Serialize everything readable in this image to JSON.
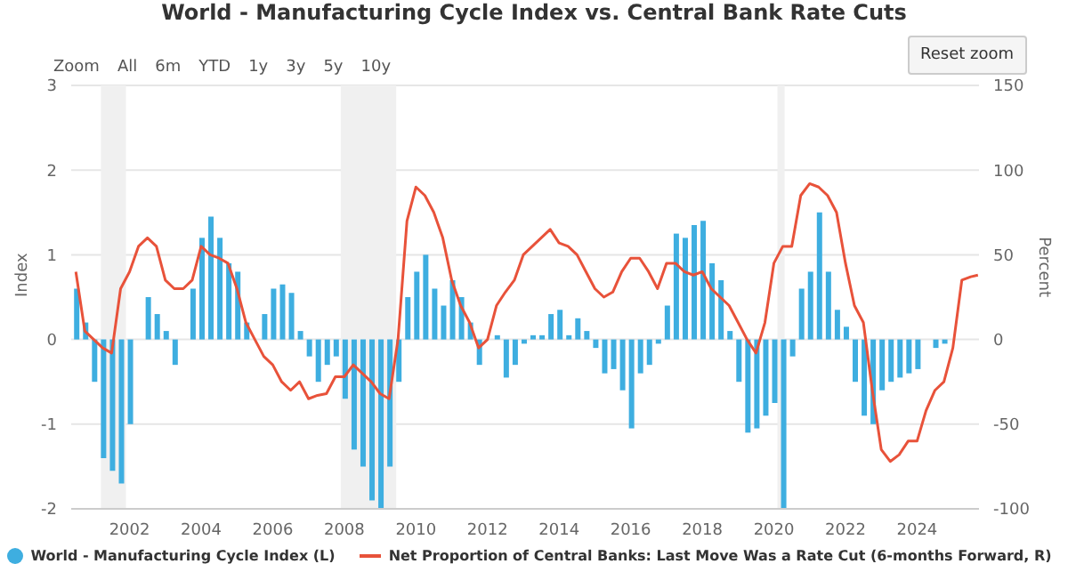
{
  "chart_data": {
    "type": "bar",
    "title": "World - Manufacturing Cycle Index vs. Central Bank Rate Cuts",
    "ylabel": "Index",
    "y2label": "Percent",
    "annotations": [
      "Zoom",
      "All",
      "6m",
      "YTD",
      "1y",
      "3y",
      "5y",
      "10y",
      "Reset zoom"
    ],
    "x": [
      2000.5,
      2000.75,
      2001,
      2001.25,
      2001.5,
      2001.75,
      2002,
      2002.25,
      2002.5,
      2002.75,
      2003,
      2003.25,
      2003.5,
      2003.75,
      2004,
      2004.25,
      2004.5,
      2004.75,
      2005,
      2005.25,
      2005.5,
      2005.75,
      2006,
      2006.25,
      2006.5,
      2006.75,
      2007,
      2007.25,
      2007.5,
      2007.75,
      2008,
      2008.25,
      2008.5,
      2008.75,
      2009,
      2009.25,
      2009.5,
      2009.75,
      2010,
      2010.25,
      2010.5,
      2010.75,
      2011,
      2011.25,
      2011.5,
      2011.75,
      2012,
      2012.25,
      2012.5,
      2012.75,
      2013,
      2013.25,
      2013.5,
      2013.75,
      2014,
      2014.25,
      2014.5,
      2014.75,
      2015,
      2015.25,
      2015.5,
      2015.75,
      2016,
      2016.25,
      2016.5,
      2016.75,
      2017,
      2017.25,
      2017.5,
      2017.75,
      2018,
      2018.25,
      2018.5,
      2018.75,
      2019,
      2019.25,
      2019.5,
      2019.75,
      2020,
      2020.25,
      2020.5,
      2020.75,
      2021,
      2021.25,
      2021.5,
      2021.75,
      2022,
      2022.25,
      2022.5,
      2022.75,
      2023,
      2023.25,
      2023.5,
      2023.75,
      2024,
      2024.25,
      2024.5,
      2024.75,
      2025,
      2025.25,
      2025.5,
      2025.7
    ],
    "series": [
      {
        "name": "World - Manufacturing Cycle Index (L)",
        "color": "#3eaee0",
        "values": [
          0.6,
          0.2,
          -0.5,
          -1.4,
          -1.55,
          -1.7,
          -1.0,
          0.0,
          0.5,
          0.3,
          0.1,
          -0.3,
          0.0,
          0.6,
          1.2,
          1.45,
          1.2,
          0.9,
          0.8,
          0.2,
          null,
          0.3,
          0.6,
          0.65,
          0.55,
          0.1,
          -0.2,
          -0.5,
          -0.3,
          -0.2,
          -0.7,
          -1.3,
          -1.5,
          -1.9,
          -2.0,
          -1.5,
          -0.5,
          0.5,
          0.8,
          1.0,
          0.6,
          0.4,
          0.7,
          0.5,
          0.2,
          -0.3,
          null,
          0.05,
          -0.45,
          -0.3,
          -0.05,
          0.05,
          0.05,
          0.3,
          0.35,
          0.05,
          0.25,
          0.1,
          -0.1,
          -0.4,
          -0.35,
          -0.6,
          -1.05,
          -0.4,
          -0.3,
          -0.05,
          0.4,
          1.25,
          1.2,
          1.35,
          1.4,
          0.9,
          0.7,
          0.1,
          -0.5,
          -1.1,
          -1.05,
          -0.9,
          -0.75,
          -2.0,
          -0.2,
          0.6,
          0.8,
          1.5,
          0.8,
          0.35,
          0.15,
          -0.5,
          -0.9,
          -1.0,
          -0.6,
          -0.5,
          -0.45,
          -0.4,
          -0.35,
          0.0,
          -0.1,
          -0.05,
          null,
          null,
          null,
          null
        ]
      },
      {
        "name": "Net Proportion of Central Banks: Last Move Was a Rate Cut (6-months Forward, R)",
        "type": "line",
        "axis": "y2",
        "color": "#e8523a",
        "values": [
          40,
          5,
          0,
          -5,
          -8,
          30,
          40,
          55,
          60,
          55,
          35,
          30,
          30,
          35,
          55,
          50,
          48,
          45,
          30,
          10,
          0,
          -10,
          -15,
          -25,
          -30,
          -25,
          -35,
          -33,
          -32,
          -22,
          -22,
          -15,
          -20,
          -25,
          -32,
          -35,
          0,
          70,
          90,
          85,
          75,
          60,
          35,
          20,
          10,
          -5,
          0,
          20,
          28,
          35,
          50,
          55,
          60,
          65,
          57,
          55,
          50,
          40,
          30,
          25,
          28,
          40,
          48,
          48,
          40,
          30,
          45,
          45,
          40,
          38,
          40,
          30,
          25,
          20,
          10,
          0,
          -8,
          10,
          45,
          55,
          55,
          85,
          92,
          90,
          85,
          75,
          45,
          20,
          10,
          -30,
          -65,
          -72,
          -68,
          -60,
          -60,
          -42,
          -30,
          -25,
          -5,
          35,
          37,
          38
        ]
      }
    ],
    "xlim": [
      2000.37,
      2025.73
    ],
    "xticks": [
      2002,
      2004,
      2006,
      2008,
      2010,
      2012,
      2014,
      2016,
      2018,
      2020,
      2022,
      2024
    ],
    "ylim": [
      -2,
      3
    ],
    "yticks": [
      -2,
      -1,
      0,
      1,
      2,
      3
    ],
    "y2lim": [
      -100,
      150
    ],
    "y2ticks": [
      -100,
      -50,
      0,
      50,
      100,
      150
    ],
    "bands": [
      {
        "axis": "x",
        "from": 2001.2,
        "to": 2001.9,
        "color": "#f0f0f0"
      },
      {
        "axis": "x",
        "from": 2007.9,
        "to": 2009.45,
        "color": "#f0f0f0"
      },
      {
        "axis": "x",
        "from": 2020.1,
        "to": 2020.3,
        "color": "#f0f0f0"
      }
    ],
    "grid": "y",
    "legend": "bottom"
  }
}
